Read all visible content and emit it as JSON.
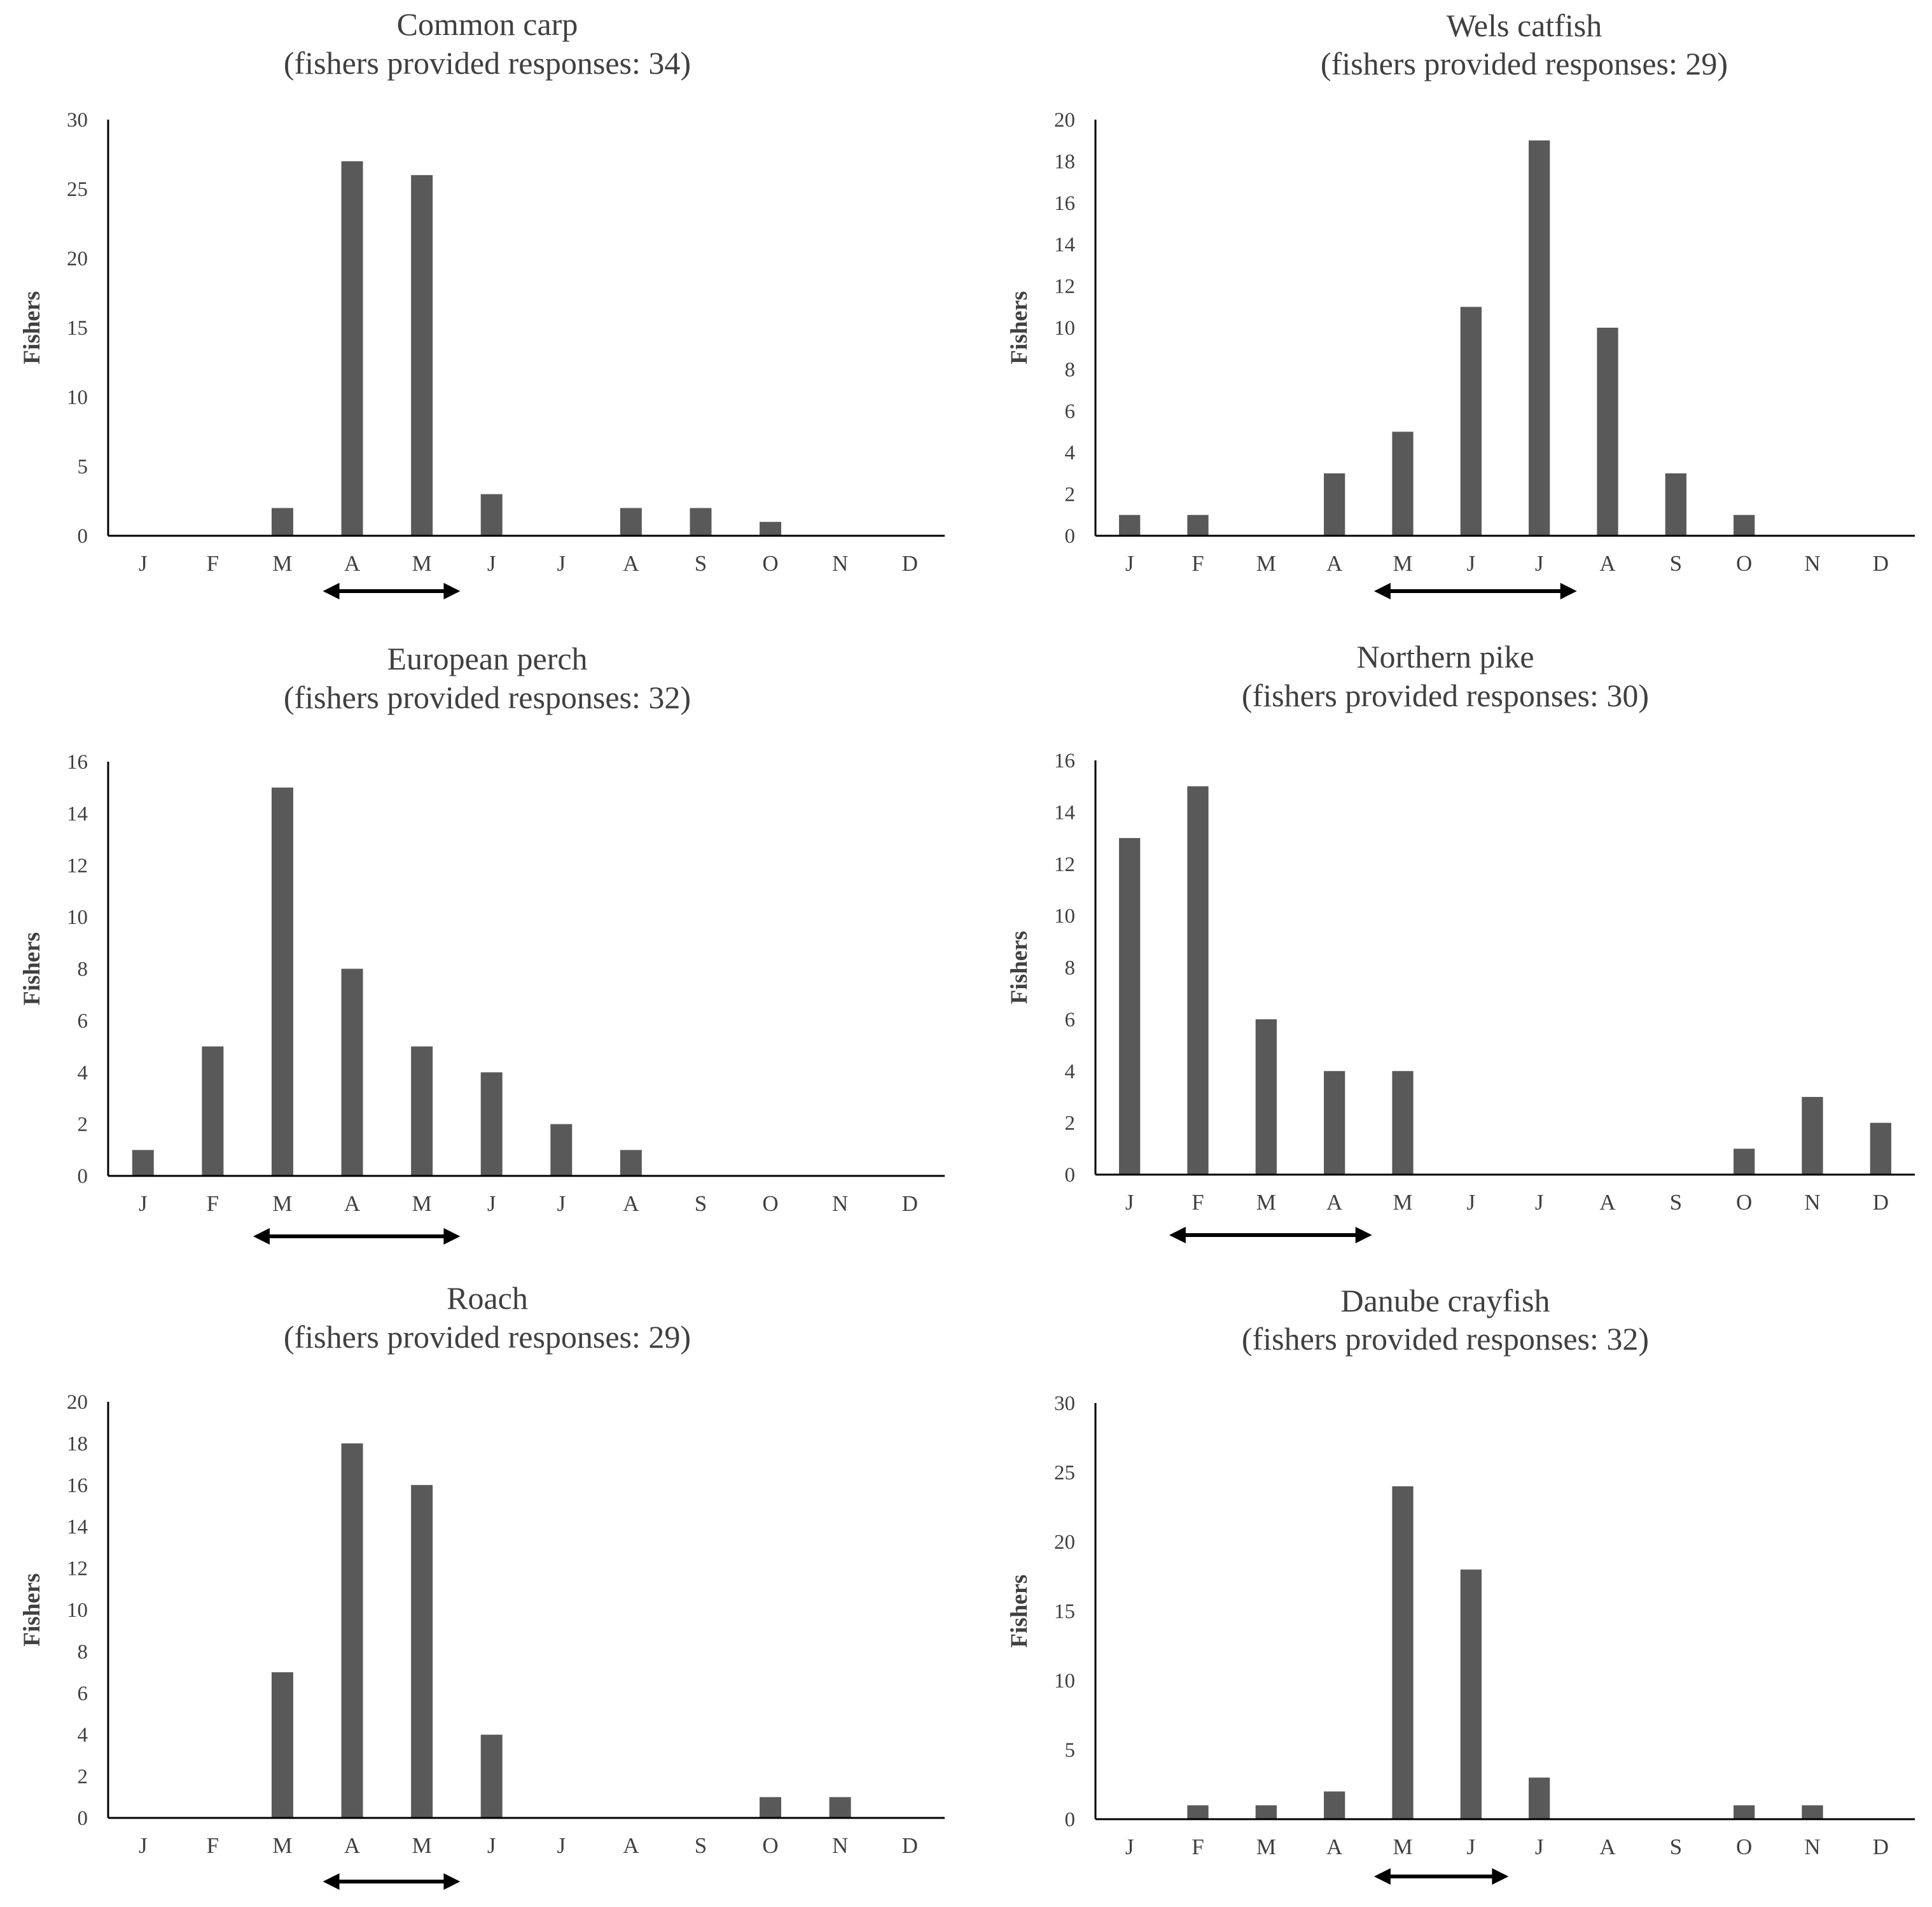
{
  "bar_color": "#595959",
  "axis_color": "#000000",
  "text_color": "#404040",
  "arrow_color": "#000000",
  "chart_data": [
    {
      "type": "bar",
      "title": "Common carp",
      "subtitle": "(fishers provided responses: 34)",
      "ylabel": "Fishers",
      "xlabel": "",
      "categories": [
        "J",
        "F",
        "M",
        "A",
        "M",
        "J",
        "J",
        "A",
        "S",
        "O",
        "N",
        "D"
      ],
      "values": [
        0,
        0,
        2,
        27,
        26,
        3,
        0,
        2,
        2,
        1,
        0,
        0
      ],
      "ylim": [
        0,
        30
      ],
      "yticks": [
        0,
        5,
        10,
        15,
        20,
        25,
        30
      ],
      "spawning_period": {
        "from_index": 3,
        "to_index": 4
      },
      "grid": false
    },
    {
      "type": "bar",
      "title": "Wels catfish",
      "subtitle": "(fishers provided responses: 29)",
      "ylabel": "Fishers",
      "xlabel": "",
      "categories": [
        "J",
        "F",
        "M",
        "A",
        "M",
        "J",
        "J",
        "A",
        "S",
        "O",
        "N",
        "D"
      ],
      "values": [
        1,
        1,
        0,
        3,
        5,
        11,
        19,
        10,
        3,
        1,
        0,
        0
      ],
      "ylim": [
        0,
        20
      ],
      "yticks": [
        0,
        2,
        4,
        6,
        8,
        10,
        12,
        14,
        16,
        18,
        20
      ],
      "spawning_period": {
        "from_index": 4,
        "to_index": 6
      },
      "grid": false
    },
    {
      "type": "bar",
      "title": "European perch",
      "subtitle": "(fishers provided responses: 32)",
      "ylabel": "Fishers",
      "xlabel": "",
      "categories": [
        "J",
        "F",
        "M",
        "A",
        "M",
        "J",
        "J",
        "A",
        "S",
        "O",
        "N",
        "D"
      ],
      "values": [
        1,
        5,
        15,
        8,
        5,
        4,
        2,
        1,
        0,
        0,
        0,
        0
      ],
      "ylim": [
        0,
        16
      ],
      "yticks": [
        0,
        2,
        4,
        6,
        8,
        10,
        12,
        14,
        16
      ],
      "spawning_period": {
        "from_index": 2,
        "to_index": 4
      },
      "grid": false
    },
    {
      "type": "bar",
      "title": "Northern pike",
      "subtitle": "(fishers provided responses: 30)",
      "ylabel": "Fishers",
      "xlabel": "",
      "categories": [
        "J",
        "F",
        "M",
        "A",
        "M",
        "J",
        "J",
        "A",
        "S",
        "O",
        "N",
        "D"
      ],
      "values": [
        13,
        15,
        6,
        4,
        4,
        0,
        0,
        0,
        0,
        1,
        3,
        2
      ],
      "ylim": [
        0,
        16
      ],
      "yticks": [
        0,
        2,
        4,
        6,
        8,
        10,
        12,
        14,
        16
      ],
      "spawning_period": {
        "from_index": 1,
        "to_index": 3
      },
      "grid": false
    },
    {
      "type": "bar",
      "title": "Roach",
      "subtitle": "(fishers provided responses: 29)",
      "ylabel": "Fishers",
      "xlabel": "",
      "categories": [
        "J",
        "F",
        "M",
        "A",
        "M",
        "J",
        "J",
        "A",
        "S",
        "O",
        "N",
        "D"
      ],
      "values": [
        0,
        0,
        7,
        18,
        16,
        4,
        0,
        0,
        0,
        1,
        1,
        0
      ],
      "ylim": [
        0,
        20
      ],
      "yticks": [
        0,
        2,
        4,
        6,
        8,
        10,
        12,
        14,
        16,
        18,
        20
      ],
      "spawning_period": {
        "from_index": 3,
        "to_index": 4
      },
      "grid": false
    },
    {
      "type": "bar",
      "title": "Danube crayfish",
      "subtitle": "(fishers provided responses: 32)",
      "ylabel": "Fishers",
      "xlabel": "",
      "categories": [
        "J",
        "F",
        "M",
        "A",
        "M",
        "J",
        "J",
        "A",
        "S",
        "O",
        "N",
        "D"
      ],
      "values": [
        0,
        1,
        1,
        2,
        24,
        18,
        3,
        0,
        0,
        1,
        1,
        0
      ],
      "ylim": [
        0,
        30
      ],
      "yticks": [
        0,
        5,
        10,
        15,
        20,
        25,
        30
      ],
      "spawning_period": {
        "from_index": 4,
        "to_index": 5
      },
      "grid": false
    }
  ]
}
